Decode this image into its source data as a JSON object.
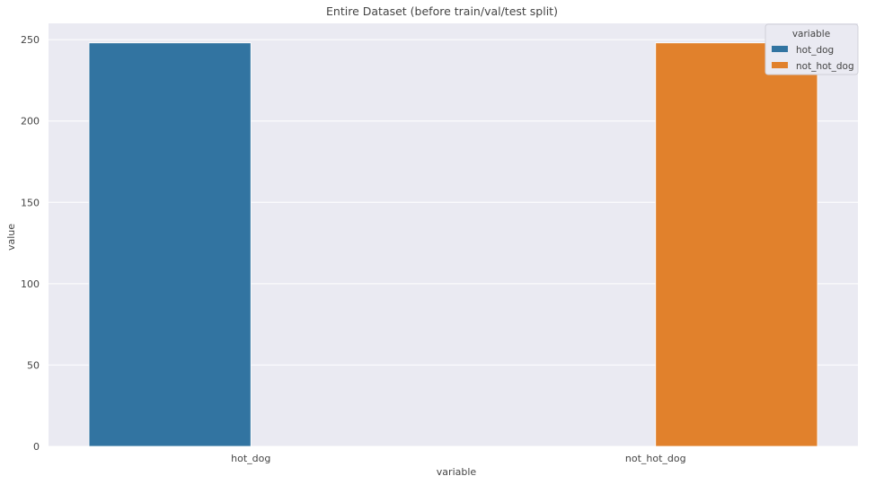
{
  "chart_data": {
    "type": "bar",
    "title": "Entire Dataset (before train/val/test split)",
    "xlabel": "variable",
    "ylabel": "value",
    "categories": [
      "hot_dog",
      "not_hot_dog"
    ],
    "series": [
      {
        "name": "hot_dog",
        "color": "#3274a1",
        "values": [
          248,
          null
        ]
      },
      {
        "name": "not_hot_dog",
        "color": "#e1812c",
        "values": [
          null,
          248
        ]
      }
    ],
    "ylim": [
      0,
      260
    ],
    "yticks": [
      0,
      50,
      100,
      150,
      200,
      250
    ],
    "legend": {
      "title": "variable",
      "position": "top-right"
    },
    "grid": true,
    "background": "#eaeaf2",
    "gridColor": "#ffffff",
    "textColor": "#444444"
  }
}
